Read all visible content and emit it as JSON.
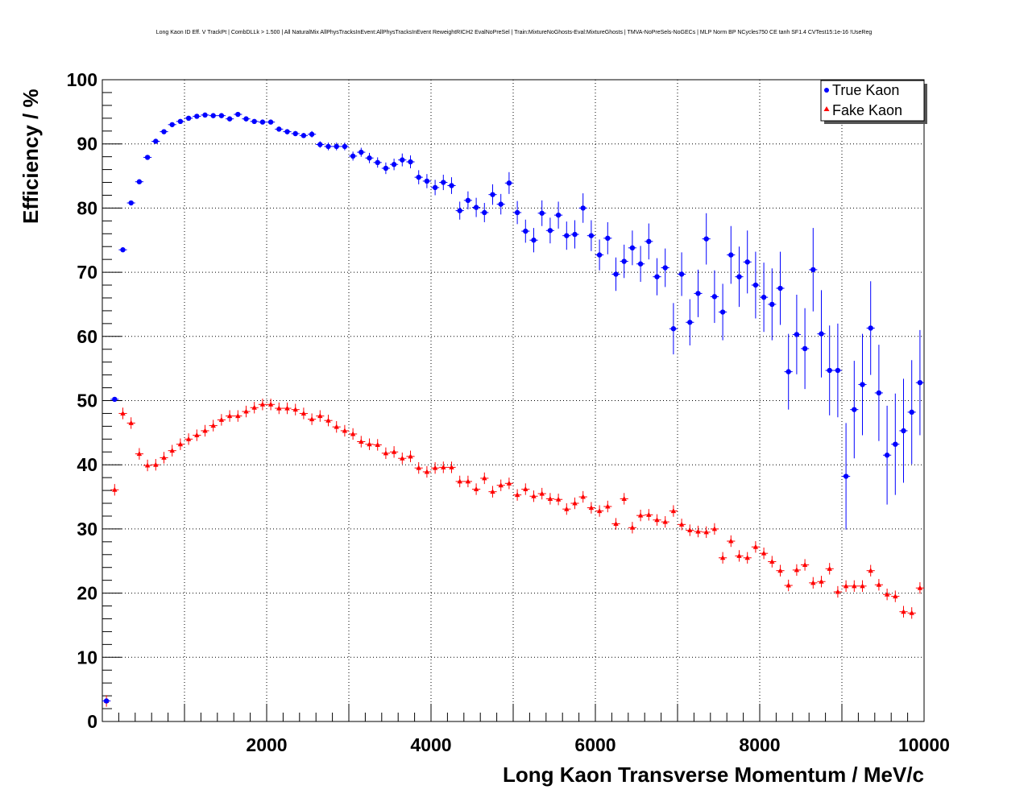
{
  "chart_data": {
    "type": "scatter",
    "title": "Long Kaon ID Eff. V TrackPt | CombDLLk > 1.500 | All NaturalMix AllPhysTracksInEvent:AllPhysTracksInEvent ReweightRICH2 EvalNoPreSel | Train:MixtureNoGhosts-Eval:MixtureGhosts | TMVA-NoPreSels-NoGECs | MLP Norm BP NCycles750 CE tanh SF1.4 CVTest15:1e-16 !UseReg",
    "xlabel": "Long Kaon Transverse Momentum / MeV/c",
    "ylabel": "Efficiency / %",
    "xlim": [
      0,
      10000
    ],
    "ylim": [
      0,
      100
    ],
    "xticks": [
      2000,
      4000,
      6000,
      8000,
      10000
    ],
    "yticks": [
      0,
      10,
      20,
      30,
      40,
      50,
      60,
      70,
      80,
      90,
      100
    ],
    "grid": true,
    "legend_position": "top-right",
    "series": [
      {
        "name": "True Kaon",
        "color": "#0000ff",
        "marker": "circle",
        "x": [
          50,
          150,
          250,
          350,
          450,
          550,
          650,
          750,
          850,
          950,
          1050,
          1150,
          1250,
          1350,
          1450,
          1550,
          1650,
          1750,
          1850,
          1950,
          2050,
          2150,
          2250,
          2350,
          2450,
          2550,
          2650,
          2750,
          2850,
          2950,
          3050,
          3150,
          3250,
          3350,
          3450,
          3550,
          3650,
          3750,
          3850,
          3950,
          4050,
          4150,
          4250,
          4350,
          4450,
          4550,
          4650,
          4750,
          4850,
          4950,
          5050,
          5150,
          5250,
          5350,
          5450,
          5550,
          5650,
          5750,
          5850,
          5950,
          6050,
          6150,
          6250,
          6350,
          6450,
          6550,
          6650,
          6750,
          6850,
          6950,
          7050,
          7150,
          7250,
          7350,
          7450,
          7550,
          7650,
          7750,
          7850,
          7950,
          8050,
          8150,
          8250,
          8350,
          8450,
          8550,
          8650,
          8750,
          8850,
          8950,
          9050,
          9150,
          9250,
          9350,
          9450,
          9550,
          9650,
          9750,
          9850,
          9950
        ],
        "y": [
          3.2,
          50.2,
          73.5,
          80.8,
          84.1,
          87.9,
          90.4,
          91.9,
          93.0,
          93.5,
          94.0,
          94.3,
          94.5,
          94.4,
          94.4,
          93.9,
          94.6,
          93.9,
          93.5,
          93.4,
          93.4,
          92.3,
          91.9,
          91.6,
          91.3,
          91.5,
          89.9,
          89.6,
          89.6,
          89.6,
          88.1,
          88.7,
          87.8,
          87.1,
          86.2,
          86.8,
          87.5,
          87.2,
          84.8,
          84.2,
          83.2,
          84.0,
          83.5,
          79.6,
          81.2,
          80.1,
          79.3,
          82.1,
          80.6,
          83.9,
          79.3,
          76.4,
          75.0,
          79.2,
          76.5,
          78.9,
          75.7,
          75.9,
          80.0,
          75.7,
          72.7,
          75.3,
          69.7,
          71.7,
          73.8,
          71.3,
          74.8,
          69.3,
          70.7,
          61.2,
          69.7,
          62.2,
          66.7,
          75.2,
          66.2,
          63.8,
          72.7,
          69.3,
          71.6,
          68.0,
          66.1,
          65.0,
          67.5,
          54.5,
          60.3,
          58.1,
          70.4,
          60.4,
          54.7,
          54.7,
          38.2,
          48.6,
          52.5,
          61.3,
          51.2,
          41.5,
          43.2,
          45.3,
          48.2,
          52.8
        ],
        "err": [
          0.3,
          0.3,
          0.3,
          0.3,
          0.3,
          0.3,
          0.3,
          0.3,
          0.3,
          0.3,
          0.3,
          0.3,
          0.3,
          0.3,
          0.3,
          0.3,
          0.3,
          0.3,
          0.3,
          0.3,
          0.3,
          0.3,
          0.4,
          0.4,
          0.4,
          0.5,
          0.5,
          0.6,
          0.6,
          0.6,
          0.7,
          0.7,
          0.8,
          0.8,
          0.9,
          0.9,
          1.0,
          1.0,
          1.1,
          1.1,
          1.2,
          1.2,
          1.3,
          1.4,
          1.4,
          1.5,
          1.5,
          1.6,
          1.6,
          1.7,
          1.8,
          1.8,
          1.9,
          2.0,
          2.0,
          2.1,
          2.2,
          2.2,
          2.3,
          2.4,
          2.4,
          2.5,
          2.6,
          2.6,
          2.7,
          2.8,
          2.8,
          2.9,
          3.0,
          4.0,
          3.4,
          3.6,
          3.7,
          4.0,
          4.1,
          4.4,
          4.5,
          4.7,
          4.9,
          5.2,
          5.4,
          5.6,
          5.7,
          5.9,
          6.2,
          6.3,
          6.5,
          6.8,
          7.0,
          7.3,
          8.3,
          7.6,
          7.9,
          7.3,
          7.5,
          7.7,
          7.9,
          8.1,
          8.1,
          8.2
        ]
      },
      {
        "name": "Fake Kaon",
        "color": "#ff0000",
        "marker": "triangle",
        "x": [
          50,
          150,
          250,
          350,
          450,
          550,
          650,
          750,
          850,
          950,
          1050,
          1150,
          1250,
          1350,
          1450,
          1550,
          1650,
          1750,
          1850,
          1950,
          2050,
          2150,
          2250,
          2350,
          2450,
          2550,
          2650,
          2750,
          2850,
          2950,
          3050,
          3150,
          3250,
          3350,
          3450,
          3550,
          3650,
          3750,
          3850,
          3950,
          4050,
          4150,
          4250,
          4350,
          4450,
          4550,
          4650,
          4750,
          4850,
          4950,
          5050,
          5150,
          5250,
          5350,
          5450,
          5550,
          5650,
          5750,
          5850,
          5950,
          6050,
          6150,
          6250,
          6350,
          6450,
          6550,
          6650,
          6750,
          6850,
          6950,
          7050,
          7150,
          7250,
          7350,
          7450,
          7550,
          7650,
          7750,
          7850,
          7950,
          8050,
          8150,
          8250,
          8350,
          8450,
          8550,
          8650,
          8750,
          8850,
          8950,
          9050,
          9150,
          9250,
          9350,
          9450,
          9550,
          9650,
          9750,
          9850,
          9950
        ],
        "y": [
          3.2,
          36.1,
          48.0,
          46.5,
          41.7,
          39.9,
          40.0,
          41.1,
          42.2,
          43.2,
          44.0,
          44.6,
          45.3,
          46.1,
          47.0,
          47.6,
          47.6,
          48.3,
          48.9,
          49.4,
          49.4,
          48.8,
          48.8,
          48.6,
          48.0,
          47.1,
          47.6,
          46.9,
          45.9,
          45.3,
          44.8,
          43.6,
          43.2,
          43.1,
          41.8,
          42.0,
          41.0,
          41.3,
          39.5,
          38.9,
          39.5,
          39.6,
          39.6,
          37.4,
          37.4,
          36.2,
          37.9,
          35.8,
          36.8,
          37.1,
          35.3,
          36.2,
          35.1,
          35.5,
          34.7,
          34.6,
          33.1,
          34.0,
          35.0,
          33.3,
          32.8,
          33.5,
          30.8,
          34.7,
          30.2,
          32.1,
          32.2,
          31.4,
          31.1,
          32.8,
          30.7,
          29.8,
          29.6,
          29.5,
          30.0,
          25.5,
          28.1,
          25.8,
          25.5,
          27.2,
          26.2,
          24.9,
          23.5,
          21.2,
          23.6,
          24.4,
          21.6,
          21.8,
          23.8,
          20.2,
          21.1,
          21.1,
          21.1,
          23.5,
          21.3,
          19.8,
          19.5,
          17.1,
          16.9,
          20.8
        ]
      }
    ]
  }
}
